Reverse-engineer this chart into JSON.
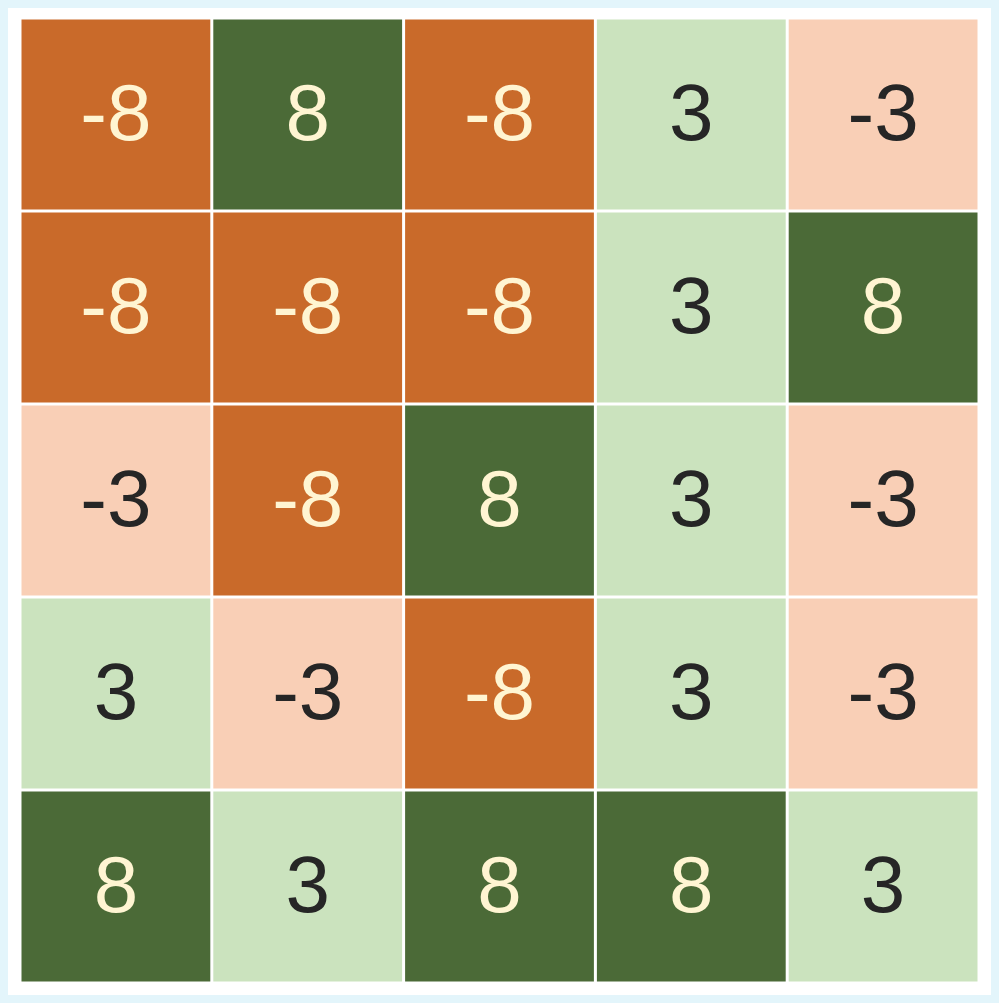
{
  "chart_data": {
    "type": "heatmap",
    "data_labels": true,
    "categories": [
      null,
      null,
      null,
      null,
      null
    ],
    "y_categories": [
      null,
      null,
      null,
      null,
      null
    ],
    "cells": [
      [
        -8,
        8,
        -8,
        3,
        -3
      ],
      [
        -8,
        -8,
        -8,
        3,
        8
      ],
      [
        -3,
        -8,
        8,
        3,
        -3
      ],
      [
        3,
        -3,
        -8,
        3,
        -3
      ],
      [
        8,
        3,
        8,
        8,
        3
      ]
    ]
  }
}
